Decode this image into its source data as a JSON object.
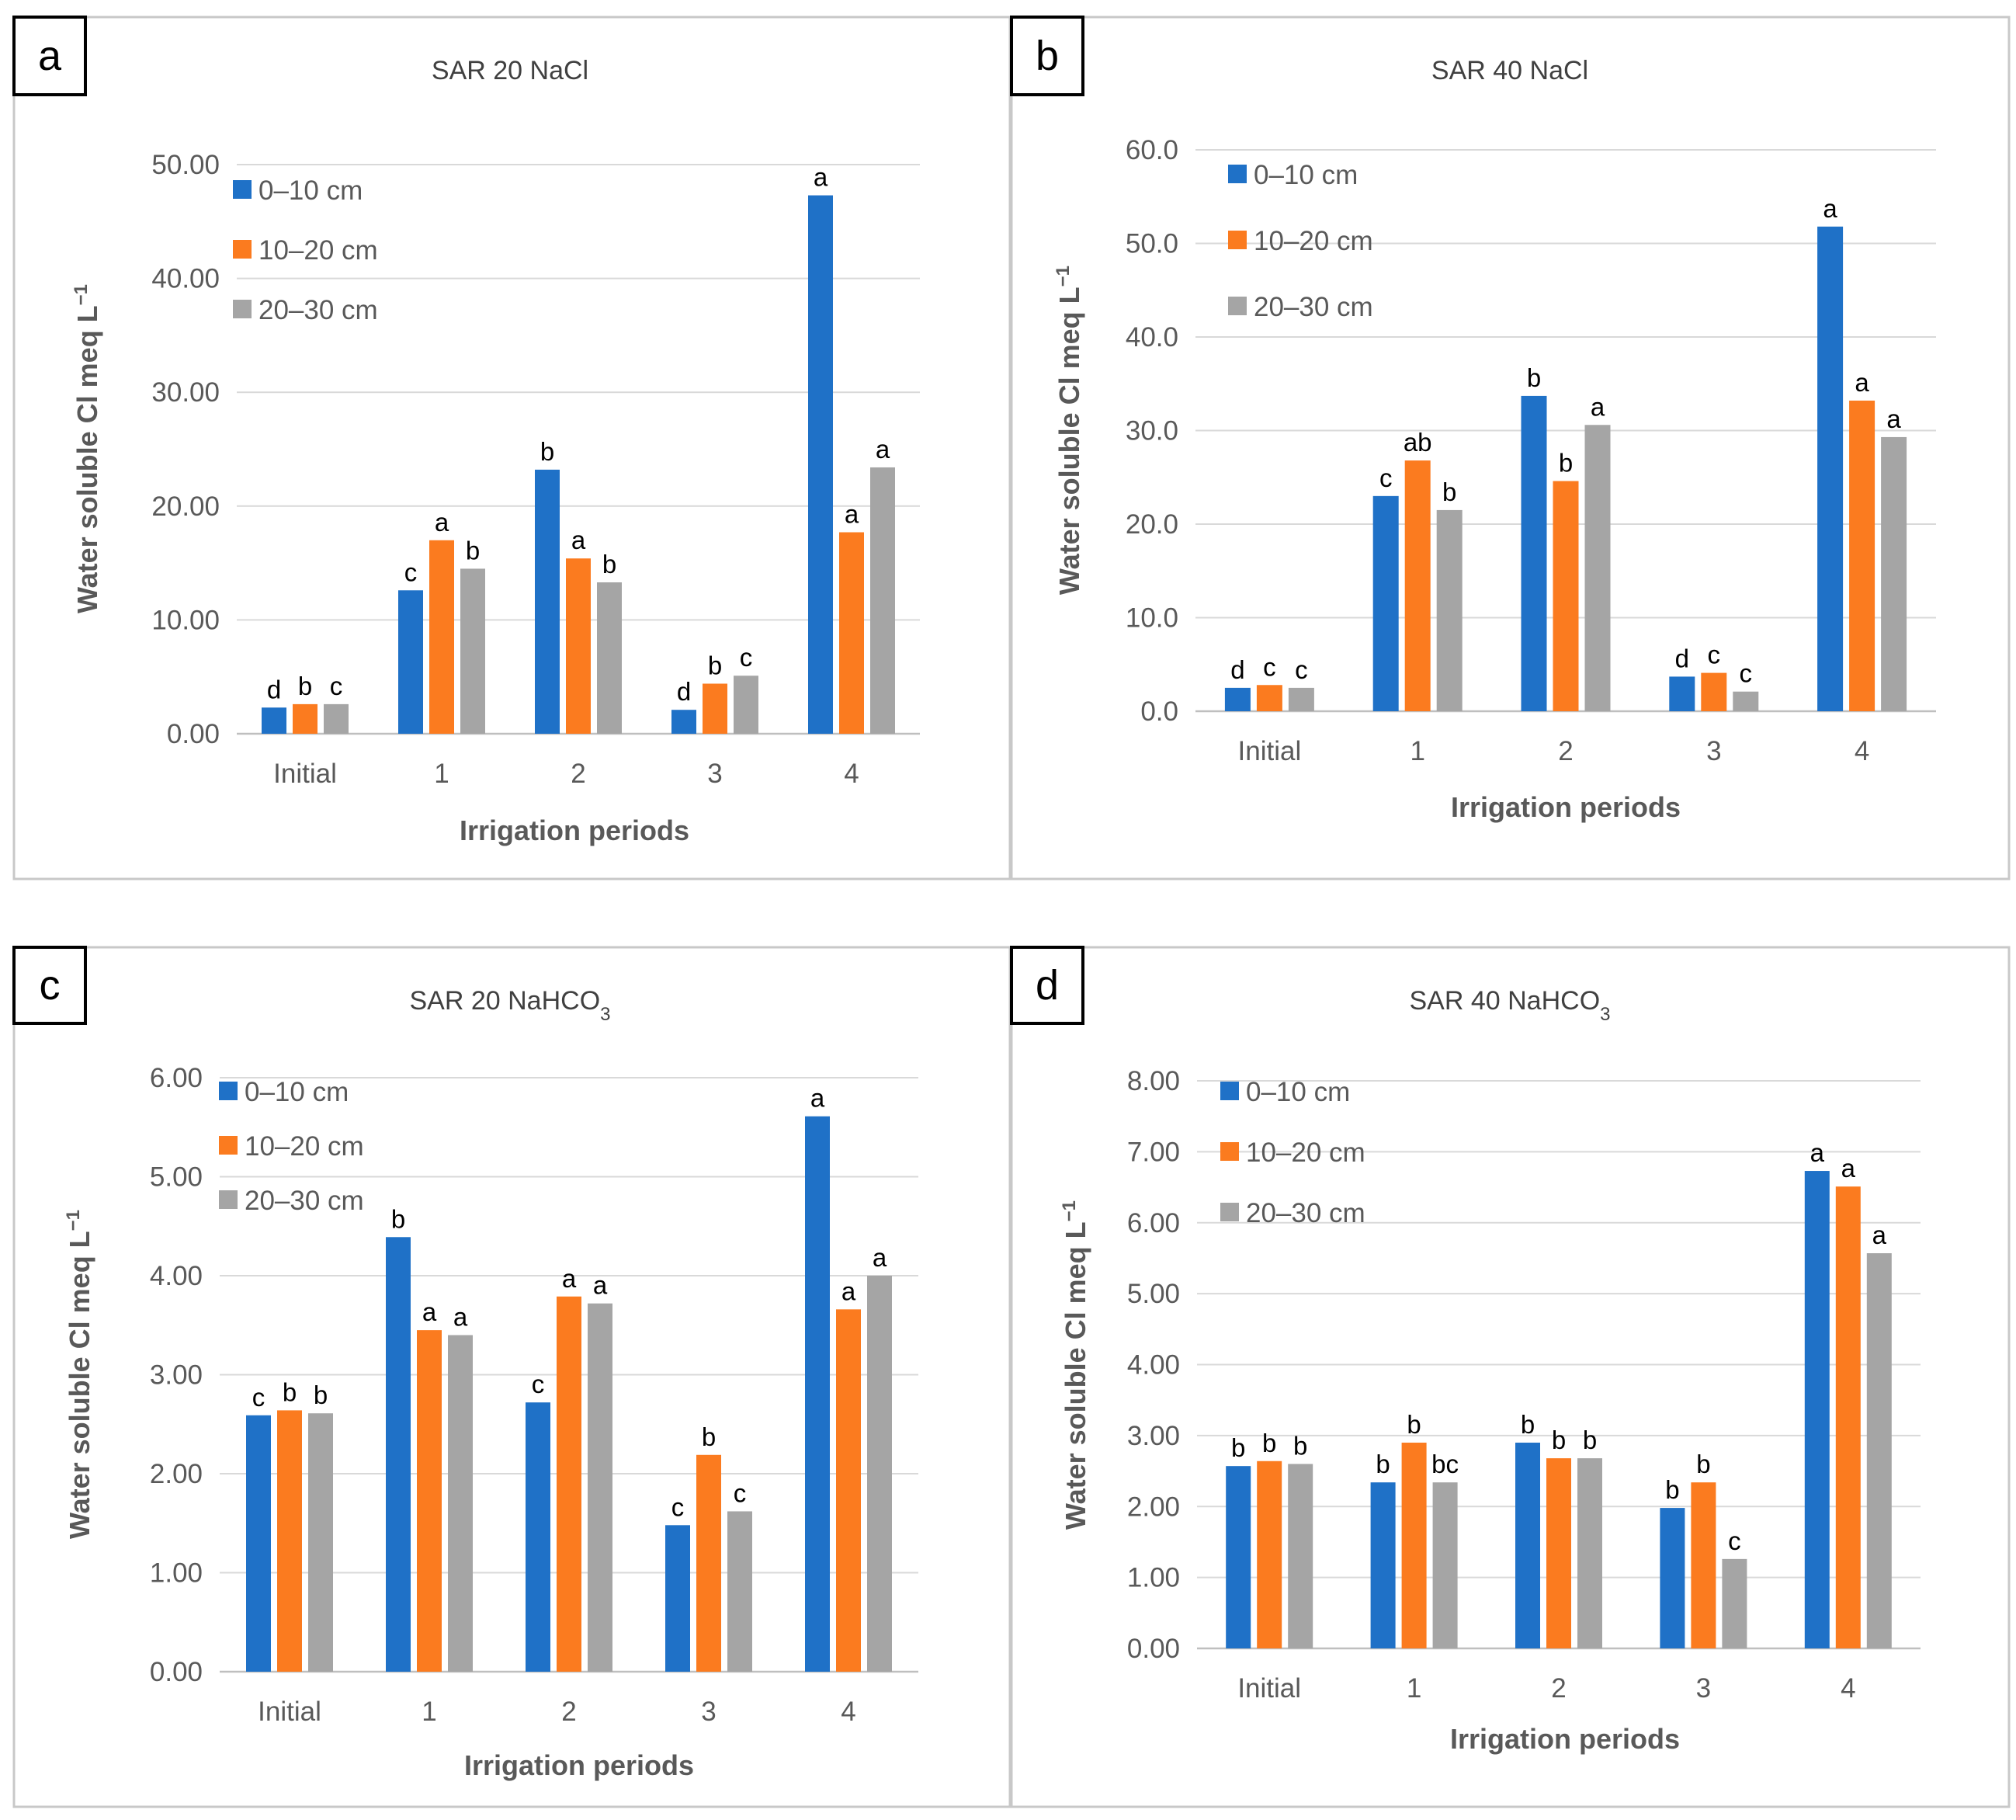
{
  "colors": {
    "s0": "#1f71c7",
    "s1": "#fb7b1f",
    "s2": "#a5a5a5"
  },
  "chart_data": [
    {
      "type": "bar",
      "panel_label": "a",
      "title_text": "SAR 20 NaCl",
      "title_sub": "",
      "xlabel": "Irrigation periods",
      "ylabel": "Water soluble Cl meq L",
      "ylabel_sup": "−1",
      "ylim": [
        0,
        50
      ],
      "y_ticks": [
        "0.00",
        "10.00",
        "20.00",
        "30.00",
        "40.00",
        "50.00"
      ],
      "categories": [
        "Initial",
        "1",
        "2",
        "3",
        "4"
      ],
      "series": [
        {
          "name": "0–10 cm",
          "values": [
            2.3,
            12.6,
            23.2,
            2.1,
            47.3
          ],
          "labels": [
            "d",
            "c",
            "b",
            "d",
            "a"
          ]
        },
        {
          "name": "10–20 cm",
          "values": [
            2.6,
            17.0,
            15.4,
            4.4,
            17.7
          ],
          "labels": [
            "b",
            "a",
            "a",
            "b",
            "a"
          ]
        },
        {
          "name": "20–30 cm",
          "values": [
            2.6,
            14.5,
            13.3,
            5.1,
            23.4
          ],
          "labels": [
            "c",
            "b",
            "b",
            "c",
            "a"
          ]
        }
      ]
    },
    {
      "type": "bar",
      "panel_label": "b",
      "title_text": "SAR 40 NaCl",
      "title_sub": "",
      "xlabel": "Irrigation periods",
      "ylabel": "Water soluble Cl meq L",
      "ylabel_sup": "−1",
      "ylim": [
        0,
        60
      ],
      "y_ticks": [
        "0.0",
        "10.0",
        "20.0",
        "30.0",
        "40.0",
        "50.0",
        "60.0"
      ],
      "categories": [
        "Initial",
        "1",
        "2",
        "3",
        "4"
      ],
      "series": [
        {
          "name": "0–10 cm",
          "values": [
            2.5,
            23.0,
            33.7,
            3.7,
            51.8
          ],
          "labels": [
            "d",
            "c",
            "b",
            "d",
            "a"
          ]
        },
        {
          "name": "10–20 cm",
          "values": [
            2.8,
            26.8,
            24.6,
            4.1,
            33.2
          ],
          "labels": [
            "c",
            "ab",
            "b",
            "c",
            "a"
          ]
        },
        {
          "name": "20–30 cm",
          "values": [
            2.5,
            21.5,
            30.6,
            2.1,
            29.3
          ],
          "labels": [
            "c",
            "b",
            "a",
            "c",
            "a"
          ]
        }
      ]
    },
    {
      "type": "bar",
      "panel_label": "c",
      "title_text": "SAR 20 NaHCO",
      "title_sub": "3",
      "xlabel": "Irrigation periods",
      "ylabel": "Water soluble Cl meq L",
      "ylabel_sup": "−1",
      "ylim": [
        0,
        6
      ],
      "y_ticks": [
        "0.00",
        "1.00",
        "2.00",
        "3.00",
        "4.00",
        "5.00",
        "6.00"
      ],
      "categories": [
        "Initial",
        "1",
        "2",
        "3",
        "4"
      ],
      "series": [
        {
          "name": "0–10 cm",
          "values": [
            2.59,
            4.39,
            2.72,
            1.48,
            5.61
          ],
          "labels": [
            "c",
            "b",
            "c",
            "c",
            "a"
          ]
        },
        {
          "name": "10–20 cm",
          "values": [
            2.64,
            3.45,
            3.79,
            2.19,
            3.66
          ],
          "labels": [
            "b",
            "a",
            "a",
            "b",
            "a"
          ]
        },
        {
          "name": "20–30 cm",
          "values": [
            2.61,
            3.4,
            3.72,
            1.62,
            4.0
          ],
          "labels": [
            "b",
            "a",
            "a",
            "c",
            "a"
          ]
        }
      ]
    },
    {
      "type": "bar",
      "panel_label": "d",
      "title_text": "SAR 40 NaHCO",
      "title_sub": "3",
      "xlabel": "Irrigation periods",
      "ylabel": "Water soluble Cl meq L",
      "ylabel_sup": "−1",
      "ylim": [
        0,
        8
      ],
      "y_ticks": [
        "0.00",
        "1.00",
        "2.00",
        "3.00",
        "4.00",
        "5.00",
        "6.00",
        "7.00",
        "8.00"
      ],
      "categories": [
        "Initial",
        "1",
        "2",
        "3",
        "4"
      ],
      "series": [
        {
          "name": "0–10 cm",
          "values": [
            2.57,
            2.34,
            2.9,
            1.98,
            6.73
          ],
          "labels": [
            "b",
            "b",
            "b",
            "b",
            "a"
          ]
        },
        {
          "name": "10–20 cm",
          "values": [
            2.64,
            2.9,
            2.68,
            2.34,
            6.51
          ],
          "labels": [
            "b",
            "b",
            "b",
            "b",
            "a"
          ]
        },
        {
          "name": "20–30 cm",
          "values": [
            2.6,
            2.34,
            2.68,
            1.26,
            5.57
          ],
          "labels": [
            "b",
            "bc",
            "b",
            "c",
            "a"
          ]
        }
      ]
    }
  ]
}
